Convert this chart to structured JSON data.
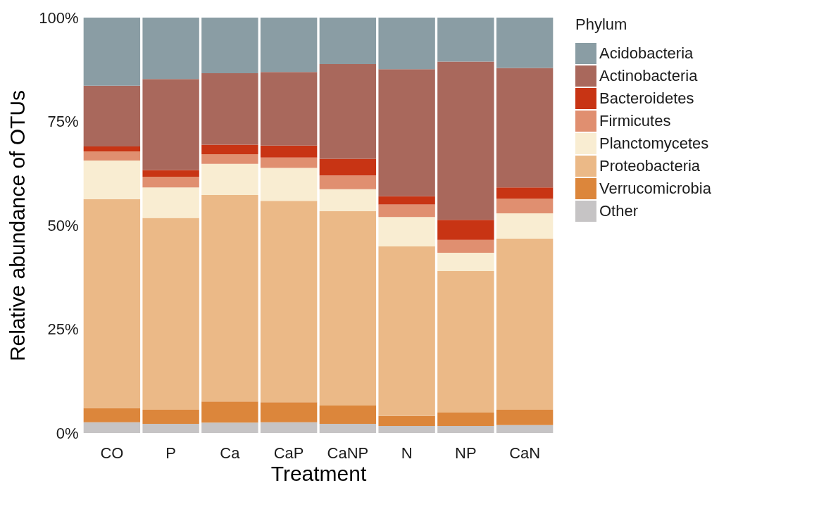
{
  "chart_data": {
    "type": "bar",
    "stacked": true,
    "xlabel": "Treatment",
    "ylabel": "Relative abundance of OTUs",
    "legend_title": "Phylum",
    "legend": "right",
    "grid": false,
    "categories": [
      "CO",
      "P",
      "Ca",
      "CaP",
      "CaNP",
      "N",
      "NP",
      "CaN"
    ],
    "ylim": [
      0,
      100
    ],
    "yticks": [
      {
        "value": 0,
        "label": "0%"
      },
      {
        "value": 25,
        "label": "25%"
      },
      {
        "value": 50,
        "label": "50%"
      },
      {
        "value": 75,
        "label": "75%"
      },
      {
        "value": 100,
        "label": "100%"
      }
    ],
    "series": [
      {
        "name": "Other",
        "color": "#c6c4c5",
        "values": [
          2.6,
          2.2,
          2.5,
          2.6,
          2.2,
          1.7,
          1.7,
          1.9
        ]
      },
      {
        "name": "Verrucomicrobia",
        "color": "#dc863b",
        "values": [
          3.4,
          3.4,
          5.1,
          4.8,
          4.4,
          2.4,
          3.2,
          3.7
        ]
      },
      {
        "name": "Proteobacteria",
        "color": "#ebb987",
        "values": [
          50.3,
          46.2,
          49.7,
          48.5,
          46.8,
          40.8,
          34.1,
          41.2
        ]
      },
      {
        "name": "Planctomycetes",
        "color": "#f9edd2",
        "values": [
          9.3,
          7.3,
          7.5,
          7.9,
          5.3,
          7.1,
          4.4,
          6.1
        ]
      },
      {
        "name": "Firmicutes",
        "color": "#e08f70",
        "values": [
          2.2,
          2.6,
          2.3,
          2.5,
          3.3,
          3.0,
          3.1,
          3.5
        ]
      },
      {
        "name": "Bacteroidetes",
        "color": "#c83414",
        "values": [
          1.2,
          1.6,
          2.3,
          2.9,
          4.0,
          2.0,
          4.8,
          2.7
        ]
      },
      {
        "name": "Actinobacteria",
        "color": "#a9685c",
        "values": [
          14.6,
          21.9,
          17.2,
          17.7,
          22.8,
          30.6,
          38.1,
          28.8
        ]
      },
      {
        "name": "Acidobacteria",
        "color": "#8a9da4",
        "values": [
          16.4,
          14.8,
          13.4,
          13.1,
          11.2,
          12.4,
          10.6,
          12.1
        ]
      }
    ]
  }
}
